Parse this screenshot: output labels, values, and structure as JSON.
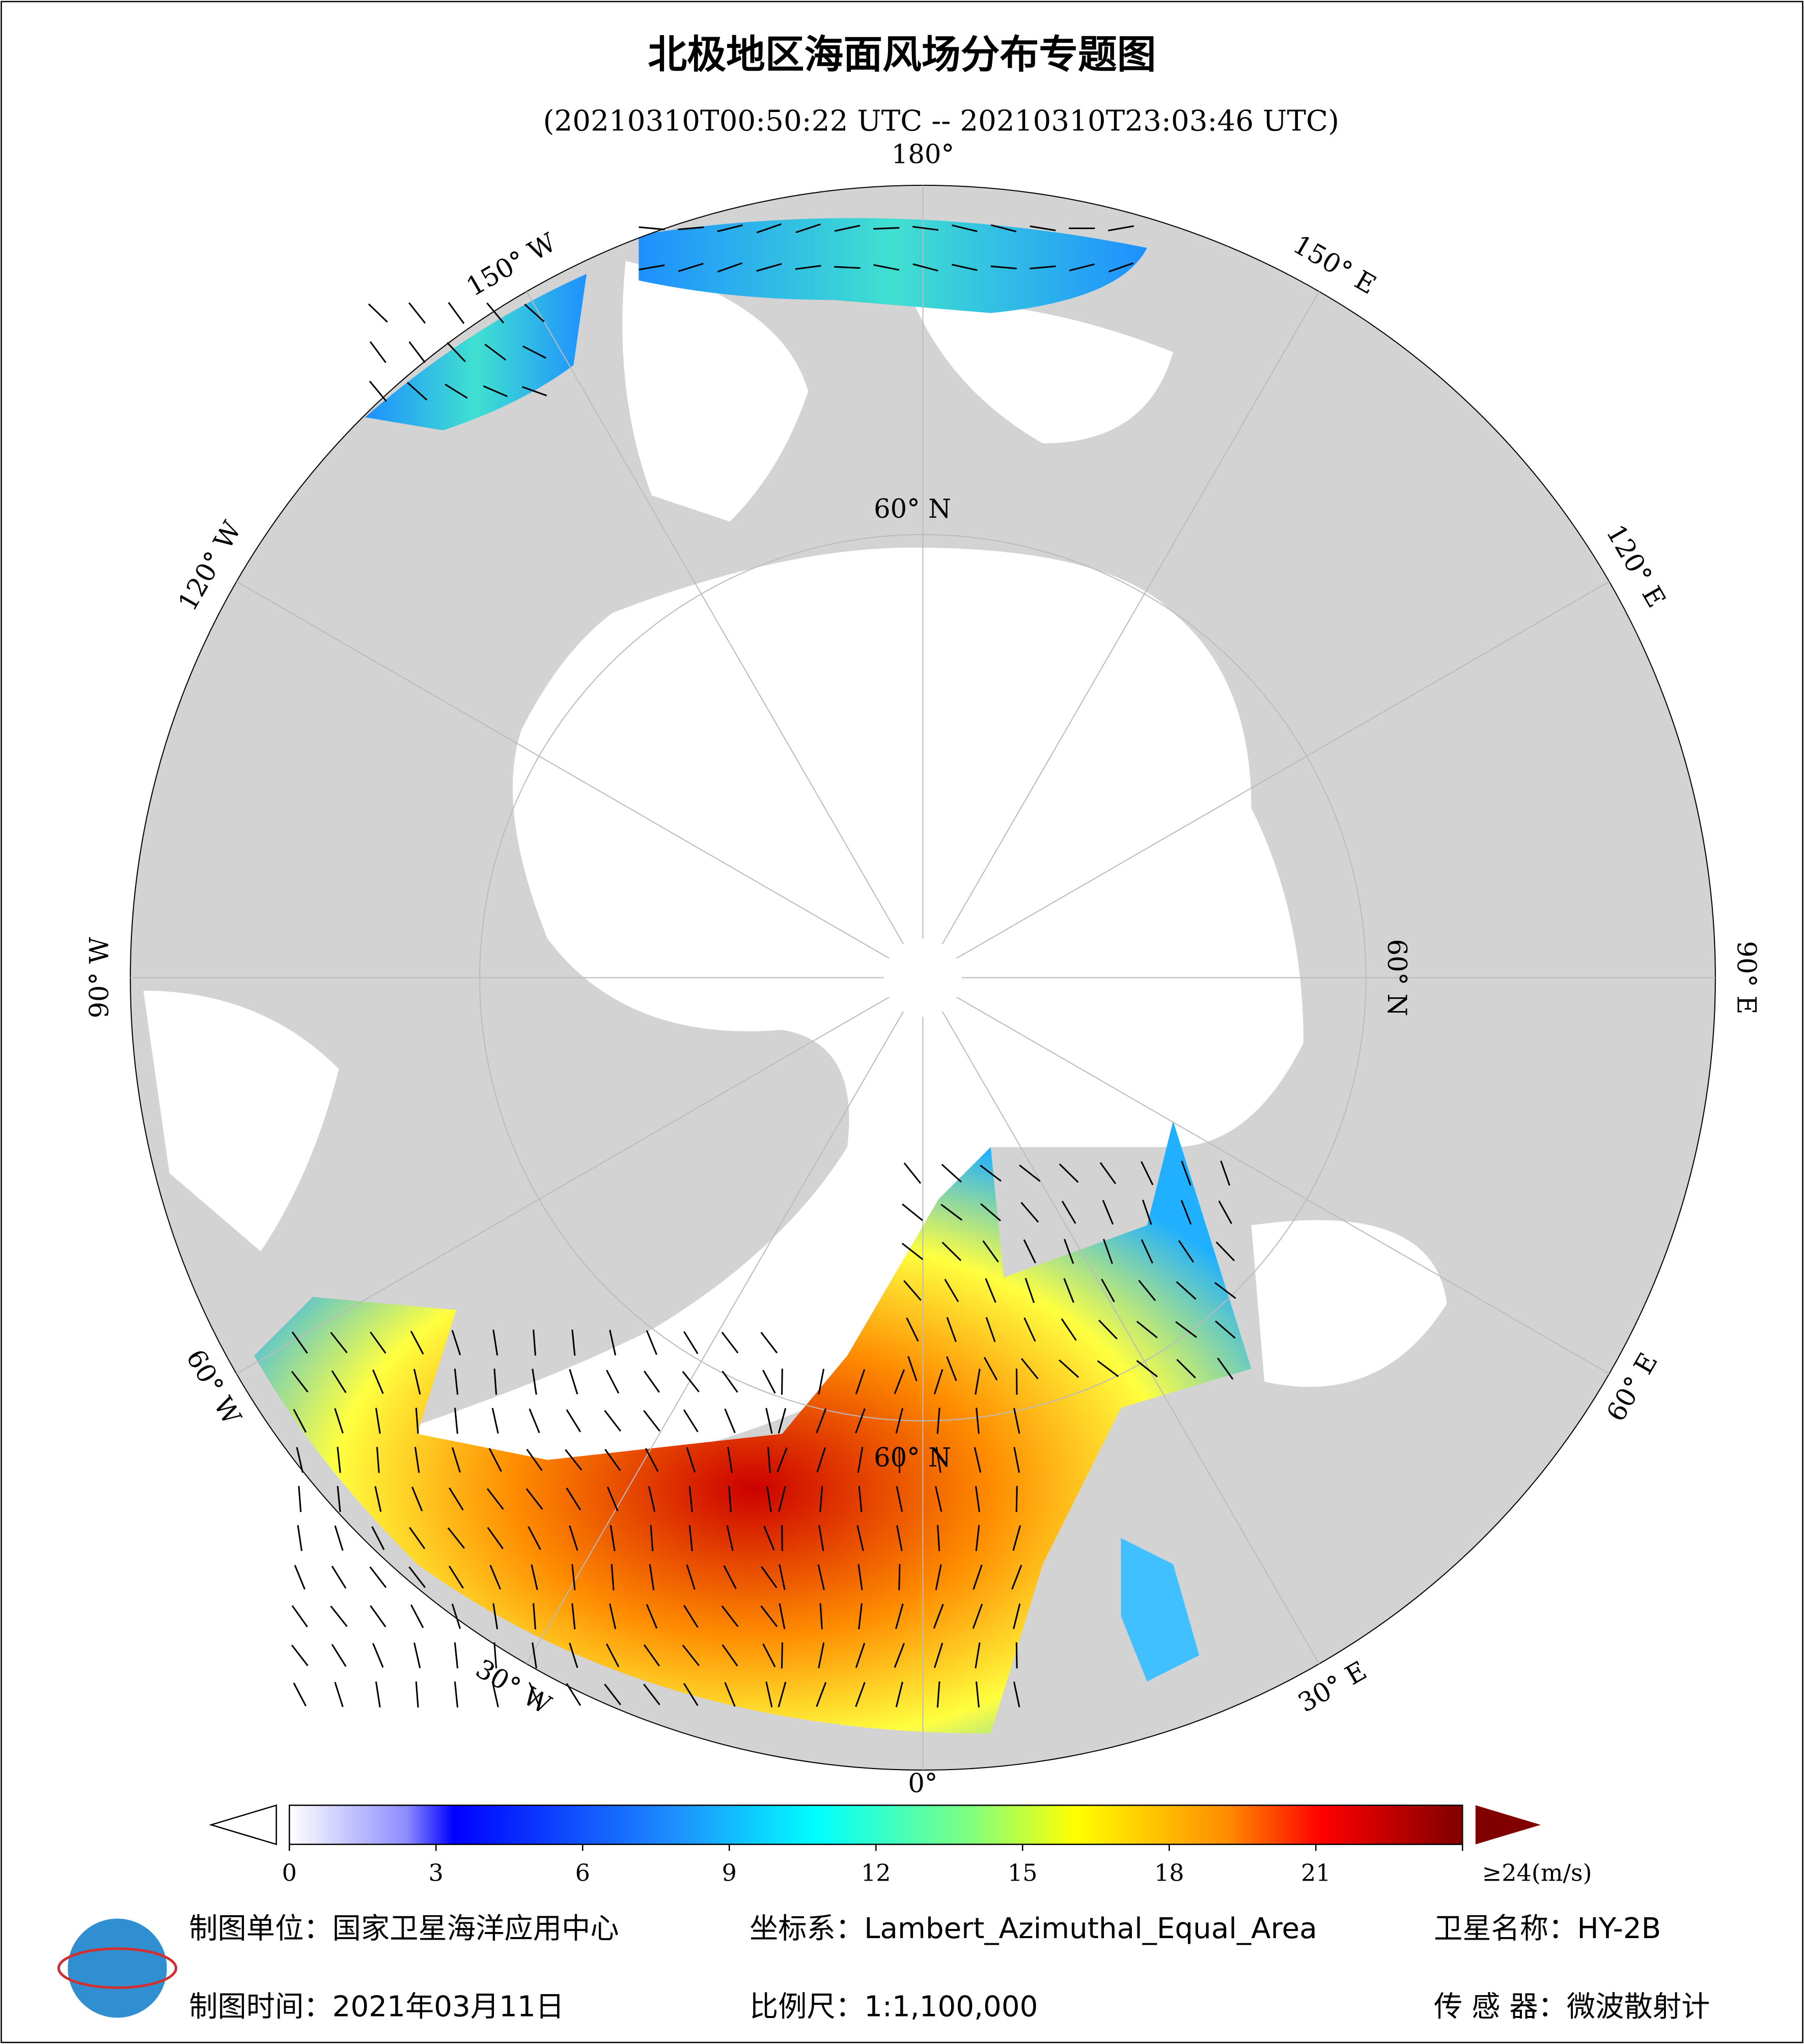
{
  "header": {
    "title": "北极地区海面风场分布专题图",
    "subtitle": "(20210310T00:50:22 UTC -- 20210310T23:03:46 UTC)"
  },
  "map": {
    "lon_labels": [
      "180°",
      "150° E",
      "120° E",
      "90° E",
      "60° E",
      "30° E",
      "0°",
      "30° W",
      "60° W",
      "90° W",
      "120° W",
      "150° W"
    ],
    "lat_label": "60° N"
  },
  "colorbar": {
    "lim": [
      0,
      24
    ],
    "ticks": [
      0,
      3,
      6,
      9,
      12,
      15,
      18,
      21,
      {
        "value": 24,
        "label": "≥24(m/s)"
      }
    ]
  },
  "footer": {
    "unit": "制图单位：国家卫星海洋应用中心",
    "projection": "坐标系：Lambert_Azimuthal_Equal_Area",
    "satellite": "卫星名称：HY-2B",
    "date": "制图时间：2021年03月11日",
    "scale": "比例尺：1:1,100,000",
    "sensor": "传 感 器：微波散射计"
  }
}
